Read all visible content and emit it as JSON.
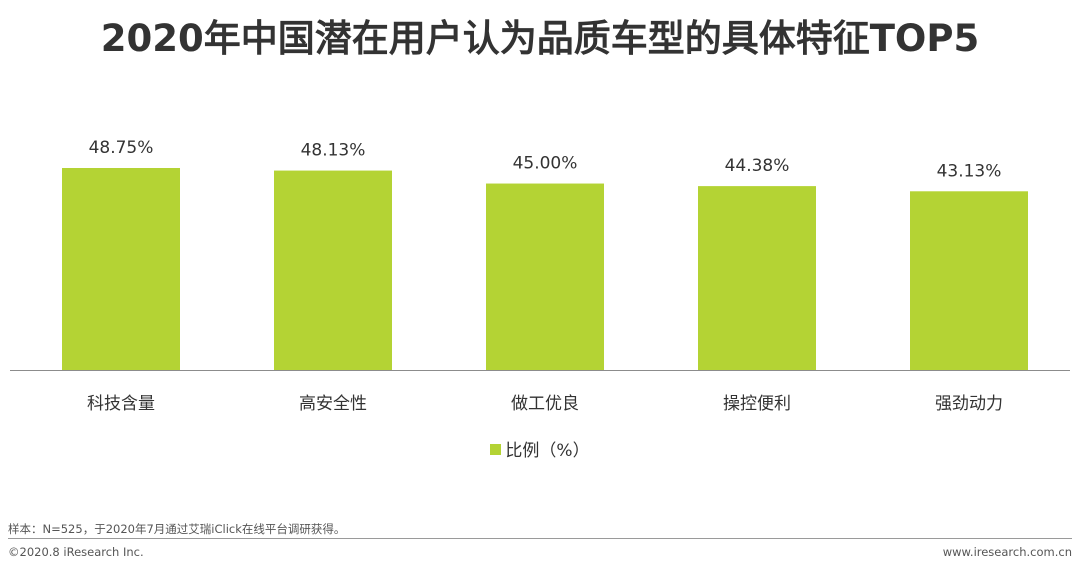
{
  "colors": {
    "bar": "#b4d334",
    "axis": "#8c8c8c",
    "text": "#333333"
  },
  "chart_data": {
    "type": "bar",
    "title": "2020年中国潜在用户认为品质车型的具体特征TOP5",
    "categories": [
      "科技含量",
      "高安全性",
      "做工优良",
      "操控便利",
      "强劲动力"
    ],
    "series": [
      {
        "name": "比例（%）",
        "values": [
          48.75,
          48.13,
          45.0,
          44.38,
          43.13
        ],
        "labels": [
          "48.75%",
          "48.13%",
          "45.00%",
          "44.38%",
          "43.13%"
        ]
      }
    ],
    "ylim": [
      0,
      48.75
    ],
    "grid": false,
    "legend_position": "bottom"
  },
  "footer": {
    "note": "样本：N=525，于2020年7月通过艾瑞iClick在线平台调研获得。",
    "copyright": "©2020.8 iResearch Inc.",
    "website": "www.iresearch.com.cn"
  }
}
